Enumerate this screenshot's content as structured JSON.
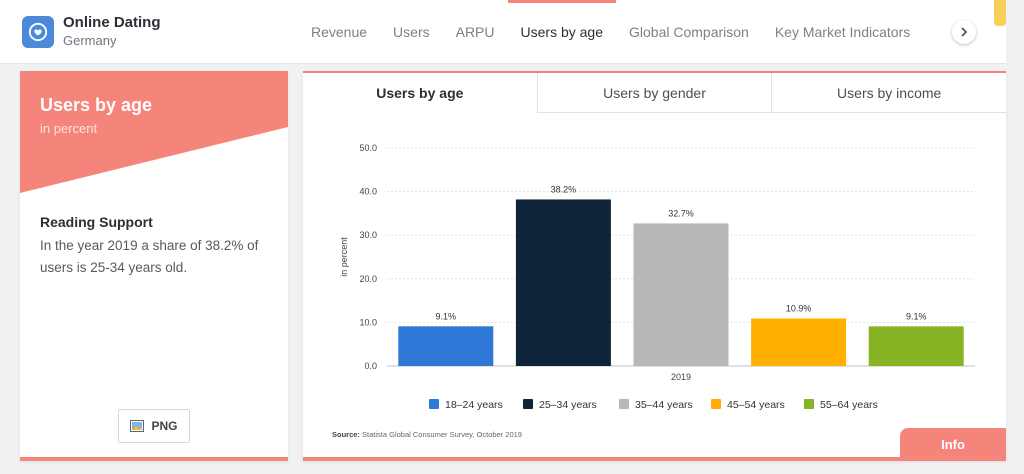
{
  "header": {
    "title": "Online Dating",
    "subtitle": "Germany",
    "nav": [
      "Revenue",
      "Users",
      "ARPU",
      "Users by age",
      "Global Comparison",
      "Key Market Indicators"
    ],
    "active_index": 3
  },
  "sidebar_card": {
    "title": "Users by age",
    "subtitle": "in percent",
    "reading_title": "Reading Support",
    "reading_text": "In the year 2019 a share of 38.2% of users is 25-34 years old.",
    "png_label": "PNG"
  },
  "tabs": [
    "Users by age",
    "Users by gender",
    "Users by income"
  ],
  "source": {
    "label": "Source:",
    "text": "Statista Global Consumer Survey, October 2019"
  },
  "info_label": "Info",
  "colors": {
    "accent": "#f5857a",
    "bar_18_24": "#2f78d8",
    "bar_25_34": "#0e2438",
    "bar_35_44": "#b7b7b7",
    "bar_45_54": "#ffb000",
    "bar_55_64": "#86b424"
  },
  "chart_data": {
    "type": "bar",
    "categories": [
      "2019"
    ],
    "series": [
      {
        "name": "18-24 years",
        "values": [
          9.1
        ],
        "label": "9.1%",
        "color": "#2f78d8"
      },
      {
        "name": "25-34 years",
        "values": [
          38.2
        ],
        "label": "38.2%",
        "color": "#0e2438"
      },
      {
        "name": "35-44 years",
        "values": [
          32.7
        ],
        "label": "32.7%",
        "color": "#b7b7b7"
      },
      {
        "name": "45-54 years",
        "values": [
          10.9
        ],
        "label": "10.9%",
        "color": "#ffb000"
      },
      {
        "name": "55-64 years",
        "values": [
          9.1
        ],
        "label": "9.1%",
        "color": "#86b424"
      }
    ],
    "ylabel": "in percent",
    "xlabel": "",
    "ylim": [
      0,
      50
    ],
    "yticks": [
      "0.0",
      "10.0",
      "20.0",
      "30.0",
      "40.0",
      "50.0"
    ],
    "grid": true,
    "legend": "bottom"
  }
}
